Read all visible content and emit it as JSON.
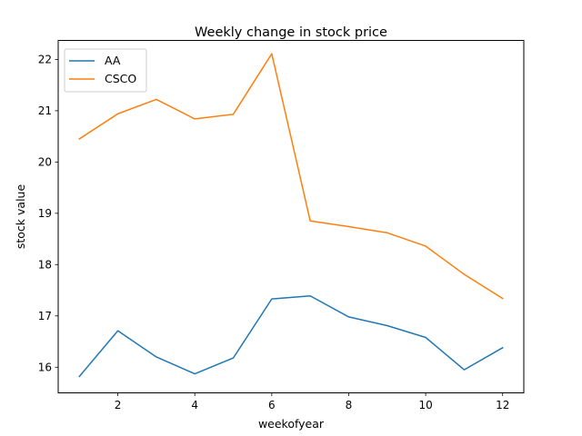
{
  "chart_data": {
    "type": "line",
    "title": "Weekly change in stock price",
    "xlabel": "weekofyear",
    "ylabel": "stock value",
    "x": [
      1,
      2,
      3,
      4,
      5,
      6,
      7,
      8,
      9,
      10,
      11,
      12
    ],
    "xlim": [
      0.45,
      12.55
    ],
    "ylim": [
      15.5,
      22.37
    ],
    "xticks": [
      2,
      4,
      6,
      8,
      10,
      12
    ],
    "yticks": [
      16,
      17,
      18,
      19,
      20,
      21,
      22
    ],
    "grid": false,
    "legend_position": "upper-left",
    "series": [
      {
        "name": "AA",
        "color": "#1f77b4",
        "values": [
          15.82,
          16.71,
          16.2,
          15.87,
          16.18,
          17.33,
          17.39,
          16.98,
          16.81,
          16.58,
          15.95,
          16.38
        ]
      },
      {
        "name": "CSCO",
        "color": "#ff7f0e",
        "values": [
          20.45,
          20.94,
          21.22,
          20.84,
          20.93,
          22.11,
          18.85,
          18.74,
          18.62,
          18.36,
          17.81,
          17.34
        ]
      }
    ]
  }
}
